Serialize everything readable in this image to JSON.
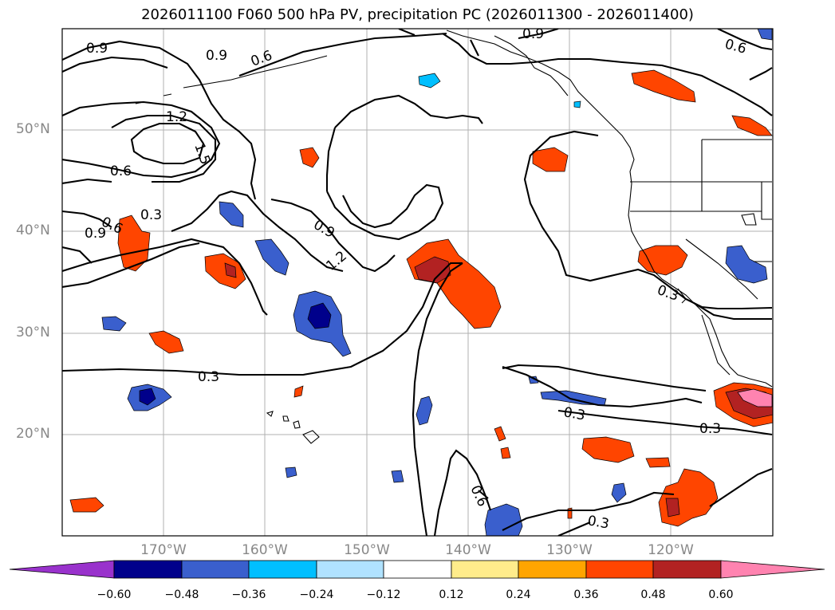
{
  "title": "2026011100 F060 500 hPa PV, precipitation PC (2026011300 - 2026011400)",
  "lat_labels": [
    "50°N",
    "40°N",
    "30°N",
    "20°N"
  ],
  "lon_labels": [
    "170°W",
    "160°W",
    "150°W",
    "140°W",
    "130°W",
    "120°W"
  ],
  "colorbar": {
    "ticks": [
      "−0.60",
      "−0.48",
      "−0.36",
      "−0.24",
      "−0.12",
      "0.12",
      "0.24",
      "0.36",
      "0.48",
      "0.60"
    ],
    "colors": [
      "#9932cc",
      "#00008b",
      "#3a5fcd",
      "#00bfff",
      "#b0e2ff",
      "#ffffff",
      "#ffec8b",
      "#ffa500",
      "#ff4500",
      "#b22222",
      "#ff83b0"
    ]
  },
  "contour_labels": [
    "0.9",
    "0.9",
    "0.6",
    "1.2",
    "1.5",
    "0.6",
    "0.3",
    "0.6",
    "0.9",
    "0.9",
    "1.2",
    "0.3",
    "0.6",
    "0.3",
    "0.3",
    "0.3",
    "0.6",
    "0.3",
    "0.9"
  ]
}
